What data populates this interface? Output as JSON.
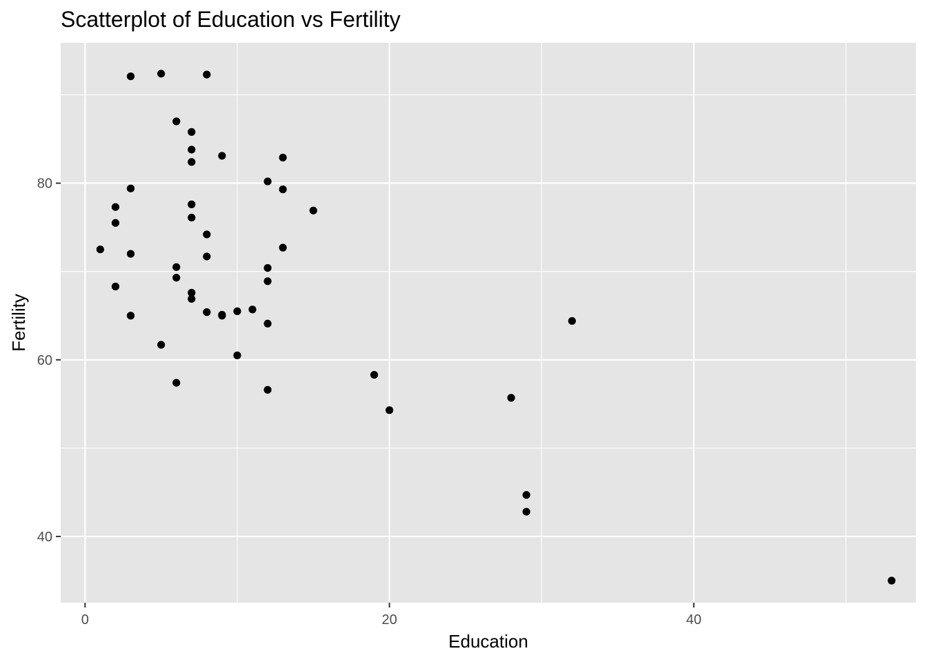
{
  "chart_data": {
    "type": "scatter",
    "title": "Scatterplot of Education vs Fertility",
    "xlabel": "Education",
    "ylabel": "Fertility",
    "xlim": [
      -1.6,
      54.6
    ],
    "ylim": [
      32.5,
      95.9
    ],
    "x_ticks": [
      0,
      20,
      40
    ],
    "y_ticks": [
      40,
      60,
      80
    ],
    "x_minor": [
      10,
      30,
      50
    ],
    "y_minor": [
      50,
      70,
      90
    ],
    "grid": true,
    "legend": "none",
    "colors": {
      "panel": "#e5e5e5",
      "grid": "#ffffff",
      "point": "#000000",
      "tick_text": "#4d4d4d"
    },
    "points": [
      {
        "x": 3,
        "y": 92.1
      },
      {
        "x": 5,
        "y": 92.4
      },
      {
        "x": 8,
        "y": 92.3
      },
      {
        "x": 6,
        "y": 87.0
      },
      {
        "x": 7,
        "y": 85.8
      },
      {
        "x": 7,
        "y": 83.8
      },
      {
        "x": 9,
        "y": 83.1
      },
      {
        "x": 13,
        "y": 82.9
      },
      {
        "x": 7,
        "y": 82.4
      },
      {
        "x": 12,
        "y": 80.2
      },
      {
        "x": 3,
        "y": 79.4
      },
      {
        "x": 13,
        "y": 79.3
      },
      {
        "x": 2,
        "y": 77.3
      },
      {
        "x": 7,
        "y": 77.6
      },
      {
        "x": 15,
        "y": 76.9
      },
      {
        "x": 7,
        "y": 76.1
      },
      {
        "x": 2,
        "y": 75.5
      },
      {
        "x": 8,
        "y": 74.2
      },
      {
        "x": 13,
        "y": 72.7
      },
      {
        "x": 1,
        "y": 72.5
      },
      {
        "x": 3,
        "y": 72.0
      },
      {
        "x": 8,
        "y": 71.7
      },
      {
        "x": 6,
        "y": 70.5
      },
      {
        "x": 12,
        "y": 70.4
      },
      {
        "x": 6,
        "y": 69.3
      },
      {
        "x": 12,
        "y": 68.9
      },
      {
        "x": 2,
        "y": 68.3
      },
      {
        "x": 7,
        "y": 67.6
      },
      {
        "x": 7,
        "y": 66.9
      },
      {
        "x": 11,
        "y": 65.7
      },
      {
        "x": 10,
        "y": 65.5
      },
      {
        "x": 8,
        "y": 65.4
      },
      {
        "x": 9,
        "y": 65.1
      },
      {
        "x": 9,
        "y": 65.0
      },
      {
        "x": 3,
        "y": 65.0
      },
      {
        "x": 32,
        "y": 64.4
      },
      {
        "x": 12,
        "y": 64.1
      },
      {
        "x": 5,
        "y": 61.7
      },
      {
        "x": 10,
        "y": 60.5
      },
      {
        "x": 19,
        "y": 58.3
      },
      {
        "x": 6,
        "y": 57.4
      },
      {
        "x": 12,
        "y": 56.6
      },
      {
        "x": 28,
        "y": 55.7
      },
      {
        "x": 20,
        "y": 54.3
      },
      {
        "x": 29,
        "y": 44.7
      },
      {
        "x": 29,
        "y": 42.8
      },
      {
        "x": 53,
        "y": 35.0
      }
    ]
  }
}
